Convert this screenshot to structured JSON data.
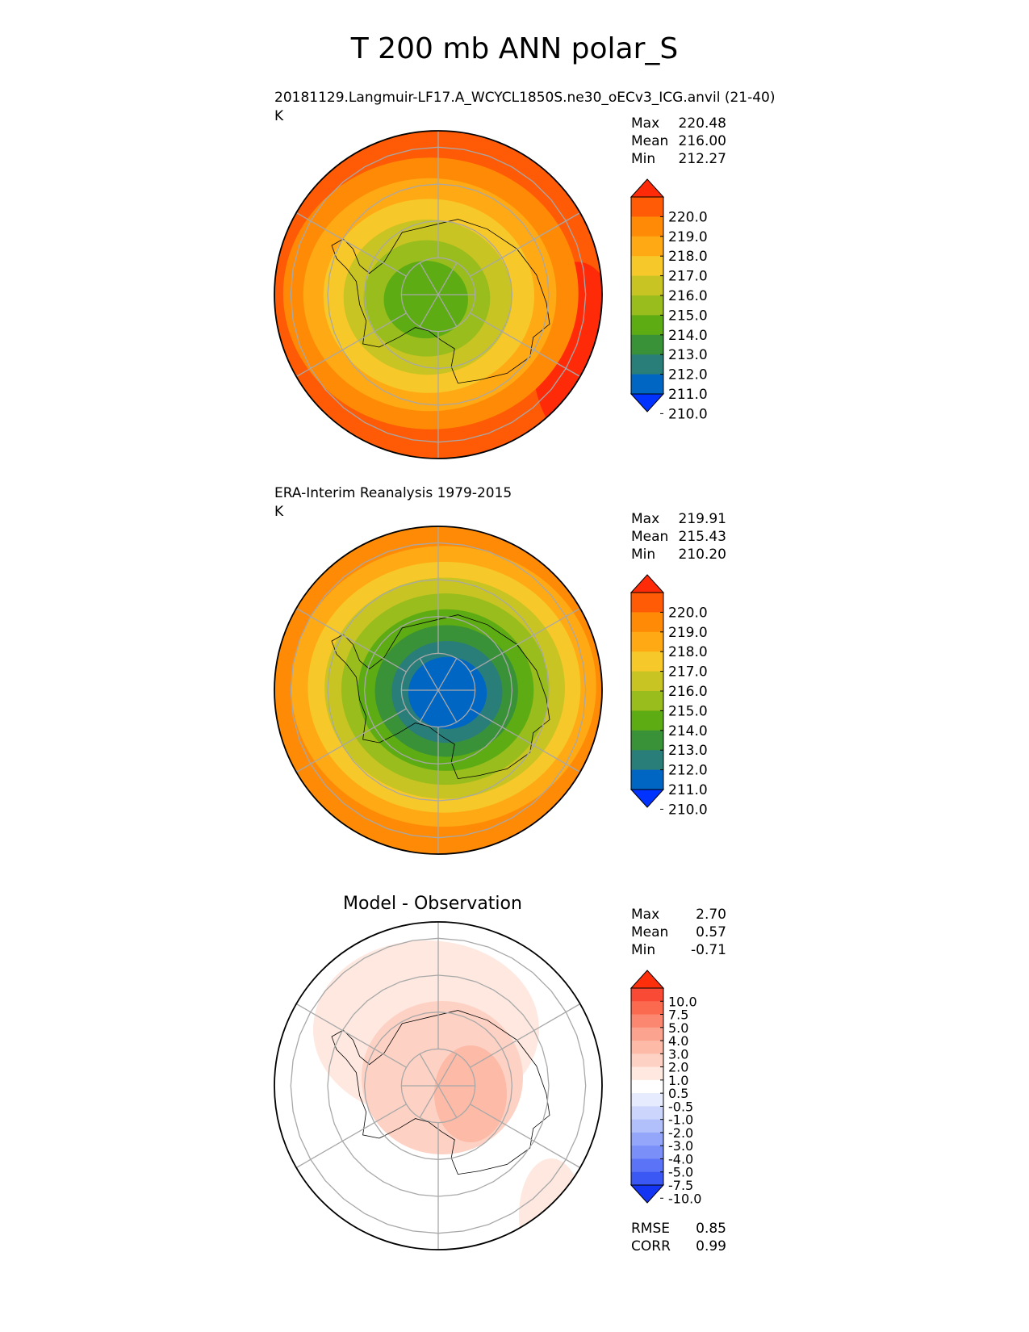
{
  "figure": {
    "title": "T 200 mb ANN polar_S"
  },
  "chart_data": [
    {
      "type": "polar_contour",
      "projection": "south polar stereographic",
      "title": "20181129.Langmuir-LF17.A_WCYCL1850S.ne30_oECv3_ICG.anvil (21-40)",
      "units": "K",
      "stats": {
        "max": "220.48",
        "mean": "216.00",
        "min": "212.27"
      },
      "stat_labels": {
        "max": "Max",
        "mean": "Mean",
        "min": "Min"
      },
      "colorbar": {
        "ticks": [
          "220.0",
          "219.0",
          "218.0",
          "217.0",
          "216.0",
          "215.0",
          "214.0",
          "213.0",
          "212.0",
          "211.0",
          "210.0"
        ],
        "colors": [
          "#ff2a08",
          "#ff5a05",
          "#ff8a06",
          "#ffa914",
          "#f7c82a",
          "#c8c423",
          "#99bd1c",
          "#5eac14",
          "#3a9238",
          "#2a7e7a",
          "#0066c3",
          "#0033ff"
        ],
        "extend": "both"
      },
      "field_rings_K": [
        213.5,
        214.5,
        215.5,
        216.5,
        217.5,
        218.5
      ],
      "hotspot_K": 220.2
    },
    {
      "type": "polar_contour",
      "projection": "south polar stereographic",
      "title": "ERA-Interim Reanalysis 1979-2015",
      "units": "K",
      "stats": {
        "max": "219.91",
        "mean": "215.43",
        "min": "210.20"
      },
      "stat_labels": {
        "max": "Max",
        "mean": "Mean",
        "min": "Min"
      },
      "colorbar": {
        "ticks": [
          "220.0",
          "219.0",
          "218.0",
          "217.0",
          "216.0",
          "215.0",
          "214.0",
          "213.0",
          "212.0",
          "211.0",
          "210.0"
        ],
        "colors": [
          "#ff2a08",
          "#ff5a05",
          "#ff8a06",
          "#ffa914",
          "#f7c82a",
          "#c8c423",
          "#99bd1c",
          "#5eac14",
          "#3a9238",
          "#2a7e7a",
          "#0066c3",
          "#0033ff"
        ],
        "extend": "both"
      },
      "field_rings_K": [
        210.5,
        211.5,
        212.5,
        213.5,
        214.5,
        215.5,
        216.5,
        217.5
      ],
      "hotspot_K": 218.5
    },
    {
      "type": "polar_contour",
      "projection": "south polar stereographic",
      "title": "Model - Observation",
      "units": "",
      "stats": {
        "max": "2.70",
        "mean": "0.57",
        "min": "-0.71"
      },
      "stat_labels": {
        "max": "Max",
        "mean": "Mean",
        "min": "Min"
      },
      "colorbar": {
        "ticks": [
          "10.0",
          "7.5",
          "5.0",
          "4.0",
          "3.0",
          "2.0",
          "1.0",
          "0.5",
          "-0.5",
          "-1.0",
          "-2.0",
          "-3.0",
          "-4.0",
          "-5.0",
          "-7.5",
          "-10.0"
        ],
        "colors": [
          "#ff2f0c",
          "#f94a35",
          "#fb6a4f",
          "#fb8770",
          "#fca38f",
          "#fcbaa7",
          "#fdd2c4",
          "#fee8e0",
          "#ffffff",
          "#e6ebfd",
          "#ccd6fc",
          "#b1bffb",
          "#94a6fa",
          "#7a8ff8",
          "#5b74f7",
          "#3b58f5",
          "#1436f3"
        ],
        "extend": "both"
      },
      "field_rings": [
        0.7,
        1.5
      ],
      "rmse_label": "RMSE",
      "rmse": "0.85",
      "corr_label": "CORR",
      "corr": "0.99"
    }
  ]
}
